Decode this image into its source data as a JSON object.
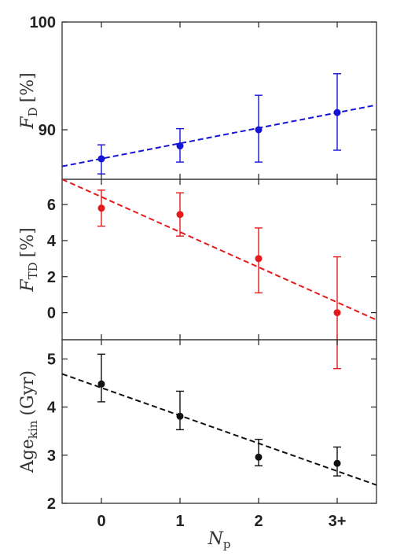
{
  "chart_data": [
    {
      "type": "scatter",
      "ylabel": {
        "main": "F",
        "sub": "D",
        "unit": "[%]"
      },
      "x": [
        0,
        1,
        2,
        3
      ],
      "xlim": [
        -0.5,
        3.5
      ],
      "ylim": [
        85.4,
        100
      ],
      "yticks": [
        90,
        100
      ],
      "grid": false,
      "color": "#1414d6",
      "series": [
        {
          "values": [
            87.3,
            88.5,
            90.0,
            91.6
          ],
          "err_low": [
            1.4,
            1.5,
            3.0,
            3.5
          ],
          "err_high": [
            1.3,
            1.6,
            3.2,
            3.6
          ]
        }
      ],
      "fit": {
        "y_at_xmin": 86.6,
        "y_at_xmax": 92.3
      }
    },
    {
      "type": "scatter",
      "ylabel": {
        "main": "F",
        "sub": "TD",
        "unit": "[%]"
      },
      "x": [
        0,
        1,
        2,
        3
      ],
      "xlim": [
        -0.5,
        3.5
      ],
      "ylim": [
        -1.5,
        7.4
      ],
      "yticks": [
        0,
        2,
        4,
        6
      ],
      "grid": false,
      "color": "#e51a1a",
      "series": [
        {
          "values": [
            5.8,
            5.45,
            3.0,
            0.0
          ],
          "err_low": [
            1.0,
            1.2,
            1.9,
            3.1
          ],
          "err_high": [
            1.0,
            1.2,
            1.7,
            3.1
          ]
        }
      ],
      "fit": {
        "y_at_xmin": 7.4,
        "y_at_xmax": -0.4
      }
    },
    {
      "type": "scatter",
      "ylabel": {
        "main": "Age",
        "sub": "kin",
        "unit": "(Gyr)"
      },
      "x": [
        0,
        1,
        2,
        3
      ],
      "xticklabels": [
        "0",
        "1",
        "2",
        "3+"
      ],
      "xlabel": {
        "main": "N",
        "sub": "p"
      },
      "xlim": [
        -0.5,
        3.5
      ],
      "ylim": [
        2.0,
        5.4
      ],
      "yticks": [
        2,
        3,
        4,
        5
      ],
      "grid": false,
      "color": "#111111",
      "series": [
        {
          "values": [
            4.48,
            3.81,
            2.96,
            2.83
          ],
          "err_low": [
            0.37,
            0.28,
            0.18,
            0.26
          ],
          "err_high": [
            0.62,
            0.52,
            0.37,
            0.34
          ]
        }
      ],
      "fit": {
        "y_at_xmin": 4.69,
        "y_at_xmax": 2.38
      }
    }
  ]
}
